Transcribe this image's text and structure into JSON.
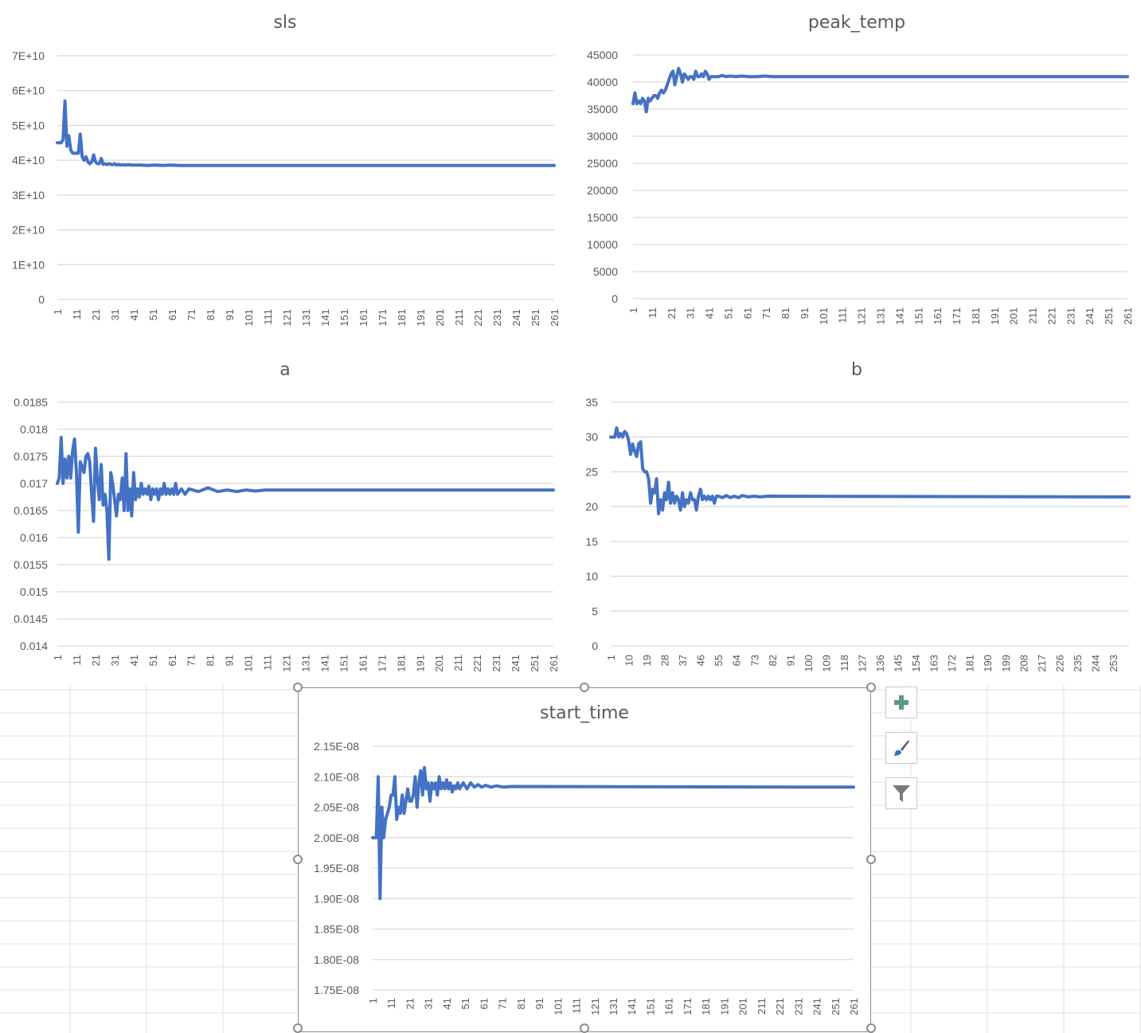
{
  "colors": {
    "series": "#4472c4",
    "gridline": "#d9d9d9",
    "axis_text": "#595959",
    "title_text": "#595959",
    "sheet_grid": "#e0e0e0",
    "plus_icon": "#5b9a7c",
    "brush_icon": "#2e75b6",
    "filter_icon": "#7a7a7a"
  },
  "chart_buttons": [
    {
      "icon": "chart-elements-plus-icon"
    },
    {
      "icon": "chart-styles-brush-icon"
    },
    {
      "icon": "chart-filters-funnel-icon"
    }
  ],
  "chart_data": [
    {
      "id": "sls",
      "type": "line",
      "title": "sls",
      "ylim": [
        0,
        70000000000
      ],
      "yticks": [
        0,
        10000000000,
        20000000000,
        30000000000,
        40000000000,
        50000000000,
        60000000000,
        70000000000
      ],
      "ytick_labels": [
        "0",
        "1E+10",
        "2E+10",
        "3E+10",
        "4E+10",
        "5E+10",
        "6E+10",
        "7E+10"
      ],
      "x_count": 261,
      "x_tick_labels": [
        "1",
        "11",
        "21",
        "31",
        "41",
        "51",
        "61",
        "71",
        "81",
        "91",
        "101",
        "111",
        "121",
        "131",
        "141",
        "151",
        "161",
        "171",
        "181",
        "191",
        "201",
        "211",
        "221",
        "231",
        "241",
        "251",
        "261"
      ],
      "grid": true,
      "series": [
        {
          "x": [
            1,
            2,
            3,
            4,
            5,
            6,
            7,
            8,
            9,
            10,
            11,
            12,
            13,
            14,
            15,
            16,
            17,
            18,
            19,
            20,
            21,
            22,
            23,
            24,
            25,
            26,
            27,
            28,
            29,
            30,
            31,
            32,
            33,
            34,
            35,
            36,
            38,
            40,
            42,
            45,
            48,
            52,
            56,
            60,
            65,
            261
          ],
          "y": [
            45000000000.0,
            45000000000.0,
            45000000000.0,
            46000000000.0,
            57000000000.0,
            44000000000.0,
            47000000000.0,
            43000000000.0,
            42000000000.0,
            42000000000.0,
            42000000000.0,
            42000000000.0,
            47500000000.0,
            41000000000.0,
            40000000000.0,
            41000000000.0,
            39500000000.0,
            39000000000.0,
            39500000000.0,
            41500000000.0,
            39500000000.0,
            39000000000.0,
            39000000000.0,
            40500000000.0,
            38800000000.0,
            39000000000.0,
            38700000000.0,
            39000000000.0,
            38800000000.0,
            38700000000.0,
            39000000000.0,
            38600000000.0,
            38800000000.0,
            38600000000.0,
            38700000000.0,
            38600000000.0,
            38700000000.0,
            38600000000.0,
            38600000000.0,
            38600000000.0,
            38500000000.0,
            38600000000.0,
            38500000000.0,
            38600000000.0,
            38500000000.0,
            38500000000.0
          ]
        }
      ]
    },
    {
      "id": "peak_temp",
      "type": "line",
      "title": "peak_temp",
      "ylim": [
        0,
        45000
      ],
      "yticks": [
        0,
        5000,
        10000,
        15000,
        20000,
        25000,
        30000,
        35000,
        40000,
        45000
      ],
      "ytick_labels": [
        "0",
        "5000",
        "10000",
        "15000",
        "20000",
        "25000",
        "30000",
        "35000",
        "40000",
        "45000"
      ],
      "x_count": 261,
      "x_tick_labels": [
        "1",
        "11",
        "21",
        "31",
        "41",
        "51",
        "61",
        "71",
        "81",
        "91",
        "101",
        "111",
        "121",
        "131",
        "141",
        "151",
        "161",
        "171",
        "181",
        "191",
        "201",
        "211",
        "221",
        "231",
        "241",
        "251",
        "261"
      ],
      "grid": true,
      "series": [
        {
          "x": [
            1,
            2,
            3,
            4,
            5,
            6,
            7,
            8,
            9,
            10,
            11,
            12,
            13,
            14,
            15,
            16,
            17,
            18,
            19,
            20,
            21,
            22,
            23,
            24,
            25,
            26,
            27,
            28,
            29,
            30,
            31,
            32,
            33,
            34,
            35,
            36,
            37,
            38,
            39,
            40,
            41,
            42,
            44,
            46,
            48,
            50,
            52,
            55,
            58,
            62,
            66,
            70,
            75,
            80,
            261
          ],
          "y": [
            36000,
            38000,
            36000,
            36500,
            36000,
            37000,
            36500,
            34500,
            37000,
            36500,
            37000,
            37500,
            37500,
            37000,
            38000,
            38500,
            38000,
            38500,
            39500,
            40500,
            41500,
            42000,
            39500,
            41000,
            42500,
            41500,
            40000,
            41500,
            41000,
            40500,
            41000,
            41000,
            40500,
            42000,
            41000,
            41000,
            41500,
            41000,
            42000,
            41500,
            40500,
            41000,
            41000,
            41000,
            41200,
            41000,
            41100,
            41000,
            41100,
            41000,
            41000,
            41100,
            41000,
            41000,
            41000
          ]
        }
      ]
    },
    {
      "id": "a",
      "type": "line",
      "title": "a",
      "ylim": [
        0.014,
        0.0185
      ],
      "yticks": [
        0.014,
        0.0145,
        0.015,
        0.0155,
        0.016,
        0.0165,
        0.017,
        0.0175,
        0.018,
        0.0185
      ],
      "ytick_labels": [
        "0.014",
        "0.0145",
        "0.015",
        "0.0155",
        "0.016",
        "0.0165",
        "0.017",
        "0.0175",
        "0.018",
        "0.0185"
      ],
      "x_count": 261,
      "x_tick_labels": [
        "1",
        "11",
        "21",
        "31",
        "41",
        "51",
        "61",
        "71",
        "81",
        "91",
        "101",
        "111",
        "121",
        "131",
        "141",
        "151",
        "161",
        "171",
        "181",
        "191",
        "201",
        "211",
        "221",
        "231",
        "241",
        "251",
        "261"
      ],
      "grid": true,
      "series": [
        {
          "x": [
            1,
            2,
            3,
            4,
            5,
            6,
            7,
            8,
            9,
            10,
            11,
            12,
            13,
            14,
            15,
            16,
            17,
            18,
            19,
            20,
            21,
            22,
            23,
            24,
            25,
            26,
            27,
            28,
            29,
            30,
            31,
            32,
            33,
            34,
            35,
            36,
            37,
            38,
            39,
            40,
            41,
            42,
            43,
            44,
            45,
            46,
            47,
            48,
            49,
            50,
            51,
            52,
            53,
            54,
            55,
            56,
            57,
            58,
            59,
            60,
            61,
            62,
            63,
            64,
            66,
            68,
            70,
            75,
            80,
            85,
            90,
            95,
            100,
            105,
            110,
            261
          ],
          "y": [
            0.017,
            0.0171,
            0.01785,
            0.017,
            0.01745,
            0.0171,
            0.0175,
            0.0171,
            0.0176,
            0.01782,
            0.0172,
            0.0161,
            0.0174,
            0.0173,
            0.0172,
            0.0175,
            0.01755,
            0.0174,
            0.0168,
            0.0163,
            0.01765,
            0.0171,
            0.0167,
            0.01735,
            0.0166,
            0.0168,
            0.0165,
            0.0156,
            0.0172,
            0.017,
            0.0167,
            0.0164,
            0.0168,
            0.0167,
            0.0171,
            0.0165,
            0.01755,
            0.0165,
            0.0169,
            0.0164,
            0.0172,
            0.0167,
            0.0169,
            0.01675,
            0.017,
            0.0168,
            0.0169,
            0.0168,
            0.01695,
            0.0167,
            0.0169,
            0.0168,
            0.0169,
            0.0167,
            0.0169,
            0.0168,
            0.017,
            0.0168,
            0.0169,
            0.0168,
            0.0169,
            0.0168,
            0.017,
            0.0168,
            0.0169,
            0.0168,
            0.0169,
            0.01685,
            0.01692,
            0.01685,
            0.01688,
            0.01685,
            0.01688,
            0.01686,
            0.01688,
            0.01688
          ]
        }
      ]
    },
    {
      "id": "b",
      "type": "line",
      "title": "b",
      "ylim": [
        0,
        35
      ],
      "yticks": [
        0,
        5,
        10,
        15,
        20,
        25,
        30,
        35
      ],
      "ytick_labels": [
        "0",
        "5",
        "10",
        "15",
        "20",
        "25",
        "30",
        "35"
      ],
      "x_count": 261,
      "x_tick_labels": [
        "1",
        "10",
        "19",
        "28",
        "37",
        "46",
        "55",
        "64",
        "73",
        "82",
        "91",
        "100",
        "109",
        "118",
        "127",
        "136",
        "145",
        "154",
        "163",
        "172",
        "181",
        "190",
        "199",
        "208",
        "217",
        "226",
        "235",
        "244",
        "253"
      ],
      "grid": true,
      "series": [
        {
          "x": [
            1,
            2,
            3,
            4,
            5,
            6,
            7,
            8,
            9,
            10,
            11,
            12,
            13,
            14,
            15,
            16,
            17,
            18,
            19,
            20,
            21,
            22,
            23,
            24,
            25,
            26,
            27,
            28,
            29,
            30,
            31,
            32,
            33,
            34,
            35,
            36,
            37,
            38,
            39,
            40,
            41,
            42,
            43,
            44,
            45,
            46,
            47,
            48,
            49,
            50,
            51,
            52,
            53,
            54,
            55,
            57,
            59,
            61,
            63,
            65,
            67,
            70,
            73,
            76,
            80,
            261
          ],
          "y": [
            30,
            30,
            30,
            31.3,
            30,
            30.5,
            30,
            30.8,
            30.5,
            29.5,
            27.5,
            29,
            28,
            27.2,
            29,
            29.3,
            25.5,
            25,
            25,
            24,
            20.5,
            22.5,
            22,
            24,
            19,
            21,
            19.5,
            22,
            21,
            23.5,
            20.5,
            22,
            20.5,
            21.5,
            21,
            19.5,
            22,
            20,
            21,
            20.5,
            22,
            21,
            21,
            19.5,
            21.5,
            22.5,
            21,
            21.5,
            21,
            21.5,
            21,
            21.5,
            20.5,
            21.5,
            21.5,
            21.3,
            21.6,
            21.3,
            21.5,
            21.3,
            21.6,
            21.4,
            21.5,
            21.4,
            21.5,
            21.4
          ]
        }
      ]
    },
    {
      "id": "start_time",
      "type": "line",
      "title": "start_time",
      "ylim": [
        1.75e-08,
        2.15e-08
      ],
      "yticks": [
        1.75e-08,
        1.8e-08,
        1.85e-08,
        1.9e-08,
        1.95e-08,
        2e-08,
        2.05e-08,
        2.1e-08,
        2.15e-08
      ],
      "ytick_labels": [
        "1.75E-08",
        "1.80E-08",
        "1.85E-08",
        "1.90E-08",
        "1.95E-08",
        "2.00E-08",
        "2.05E-08",
        "2.10E-08",
        "2.15E-08"
      ],
      "x_count": 261,
      "x_tick_labels": [
        "1",
        "11",
        "21",
        "31",
        "41",
        "51",
        "61",
        "71",
        "81",
        "91",
        "101",
        "111",
        "121",
        "131",
        "141",
        "151",
        "161",
        "171",
        "181",
        "191",
        "201",
        "211",
        "221",
        "231",
        "241",
        "251",
        "261"
      ],
      "grid": true,
      "series": [
        {
          "x": [
            1,
            2,
            3,
            4,
            5,
            6,
            7,
            8,
            9,
            10,
            11,
            12,
            13,
            14,
            15,
            16,
            17,
            18,
            19,
            20,
            21,
            22,
            23,
            24,
            25,
            26,
            27,
            28,
            29,
            30,
            31,
            32,
            33,
            34,
            35,
            36,
            37,
            38,
            39,
            40,
            41,
            42,
            43,
            44,
            45,
            46,
            47,
            48,
            50,
            52,
            54,
            56,
            58,
            60,
            62,
            65,
            68,
            72,
            76,
            261
          ],
          "y": [
            2e-08,
            2e-08,
            2e-08,
            2.1e-08,
            1.9e-08,
            2.05e-08,
            2e-08,
            2.03e-08,
            2.04e-08,
            2.05e-08,
            2.07e-08,
            2.07e-08,
            2.1e-08,
            2.03e-08,
            2.05e-08,
            2.04e-08,
            2.07e-08,
            2.04e-08,
            2.06e-08,
            2.08e-08,
            2.06e-08,
            2.06e-08,
            2.07e-08,
            2.1e-08,
            2.05e-08,
            2.09e-08,
            2.11e-08,
            2.07e-08,
            2.115e-08,
            2.08e-08,
            2.09e-08,
            2.06e-08,
            2.09e-08,
            2.08e-08,
            2.09e-08,
            2.07e-08,
            2.1e-08,
            2.08e-08,
            2.09e-08,
            2.08e-08,
            2.095e-08,
            2.08e-08,
            2.09e-08,
            2.075e-08,
            2.085e-08,
            2.08e-08,
            2.09e-08,
            2.08e-08,
            2.09e-08,
            2.08e-08,
            2.09e-08,
            2.083e-08,
            2.087e-08,
            2.083e-08,
            2.086e-08,
            2.083e-08,
            2.085e-08,
            2.083e-08,
            2.084e-08,
            2.083e-08
          ]
        }
      ]
    }
  ]
}
